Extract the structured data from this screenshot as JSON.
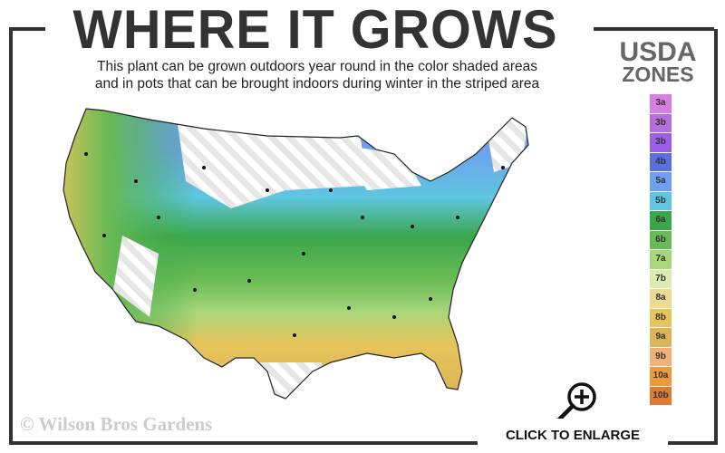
{
  "header": {
    "title": "WHERE IT GROWS",
    "subtitle_line1": "This plant can be grown outdoors year round in the color shaded areas",
    "subtitle_line2": "and in pots that can be brought indoors during winter in the striped area"
  },
  "legend": {
    "title_line1": "USDA",
    "title_line2": "ZONES",
    "zones": [
      {
        "label": "3a",
        "color": "#d67fe0"
      },
      {
        "label": "3b",
        "color": "#b56fd8"
      },
      {
        "label": "3b",
        "color": "#9a5ee8"
      },
      {
        "label": "4b",
        "color": "#5b6fe0"
      },
      {
        "label": "5a",
        "color": "#6f9ff0"
      },
      {
        "label": "5b",
        "color": "#5fc6e0"
      },
      {
        "label": "6a",
        "color": "#3aa64a"
      },
      {
        "label": "6b",
        "color": "#69bb55"
      },
      {
        "label": "7a",
        "color": "#a8d67a"
      },
      {
        "label": "7b",
        "color": "#dcebb0"
      },
      {
        "label": "8a",
        "color": "#ecdb95"
      },
      {
        "label": "8b",
        "color": "#e6c45a"
      },
      {
        "label": "9a",
        "color": "#dcb558"
      },
      {
        "label": "9b",
        "color": "#f2b07a"
      },
      {
        "label": "10a",
        "color": "#eb9a3c"
      },
      {
        "label": "10b",
        "color": "#e07a30"
      }
    ]
  },
  "footer": {
    "copyright": "© Wilson Bros Gardens",
    "enlarge_label": "CLICK TO ENLARGE"
  }
}
